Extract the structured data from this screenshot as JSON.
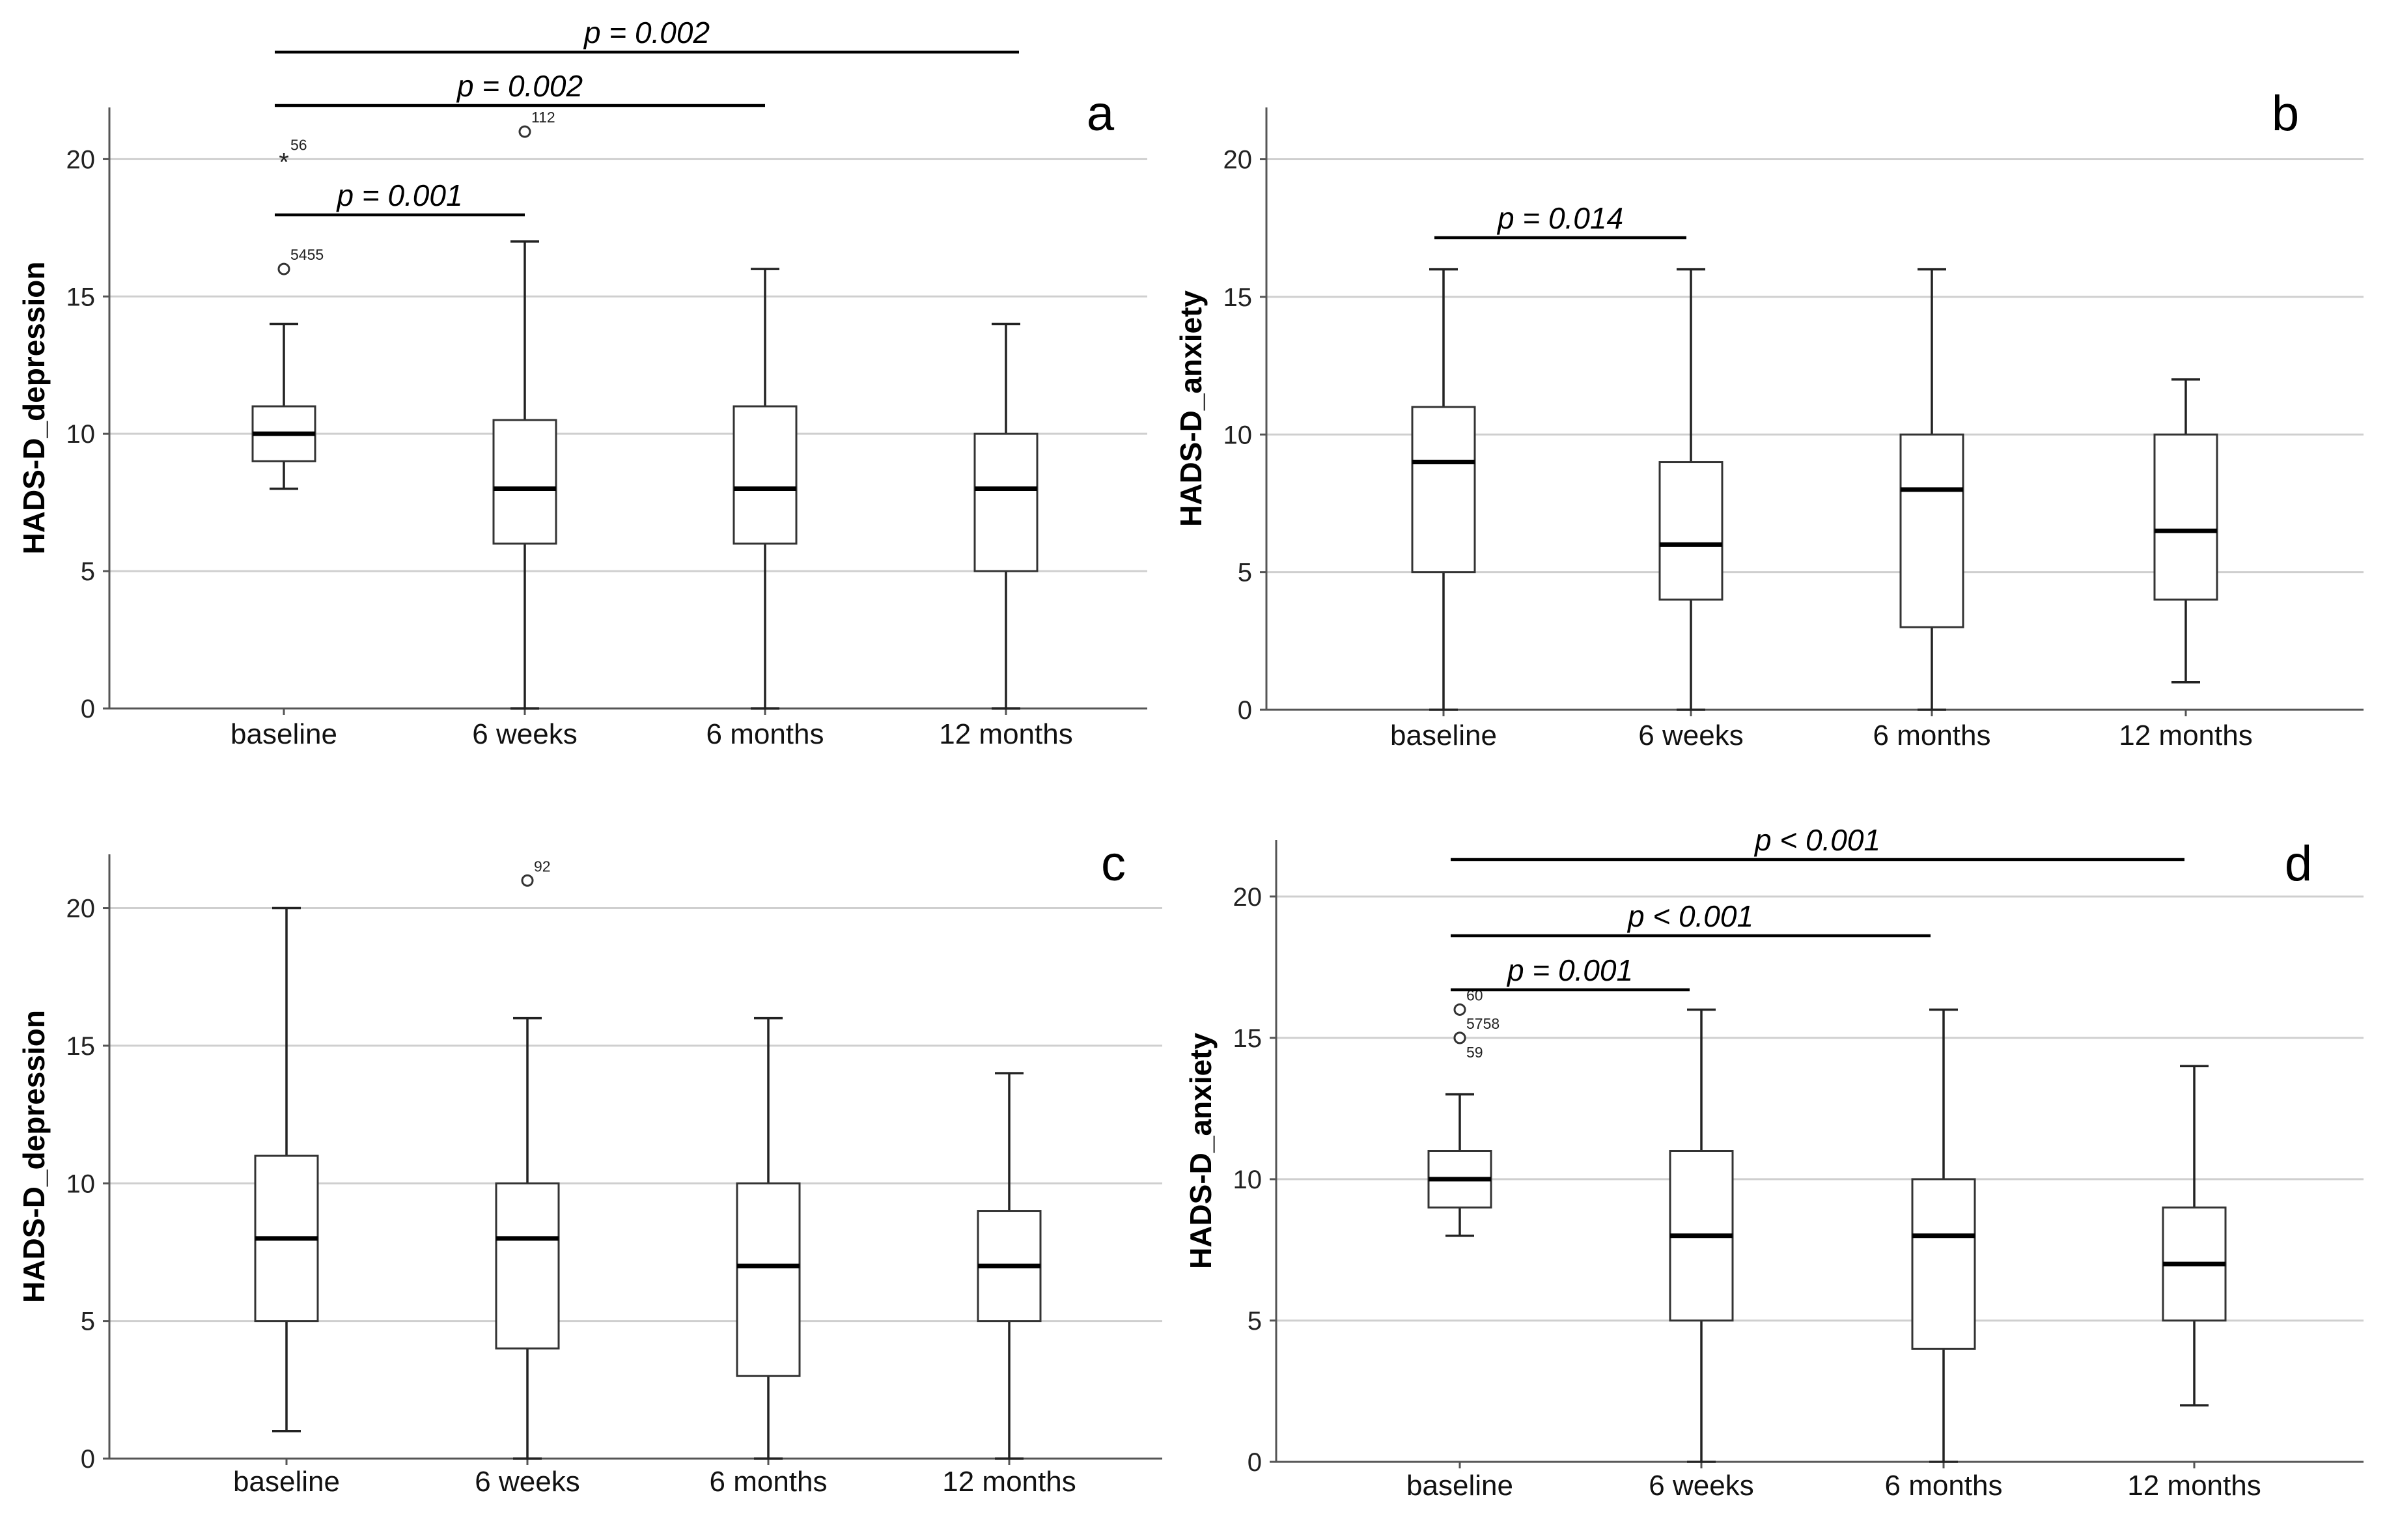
{
  "chart_data": [
    {
      "type": "boxplot",
      "panel": "a",
      "ylabel": "HADS-D_depression",
      "ylim": [
        0,
        22
      ],
      "yticks": [
        "0",
        "5",
        "10",
        "15",
        "20"
      ],
      "categories": [
        "baseline",
        "6 weeks",
        "6 months",
        "12 months"
      ],
      "boxes": [
        {
          "q1": 9,
          "median": 10,
          "q3": 11,
          "whisker_low": 8,
          "whisker_high": 14
        },
        {
          "q1": 6,
          "median": 8,
          "q3": 10.5,
          "whisker_low": 0,
          "whisker_high": 17
        },
        {
          "q1": 6,
          "median": 8,
          "q3": 11,
          "whisker_low": 0,
          "whisker_high": 16
        },
        {
          "q1": 5,
          "median": 8,
          "q3": 10,
          "whisker_low": 0,
          "whisker_high": 14
        }
      ],
      "outliers": [
        {
          "category": 0,
          "value": 16,
          "marker": "circle",
          "label": "5455"
        },
        {
          "category": 0,
          "value": 20,
          "marker": "star",
          "label": "56"
        },
        {
          "category": 1,
          "value": 21,
          "marker": "circle",
          "label": "112"
        }
      ],
      "significance": [
        {
          "from": 0,
          "to": 1,
          "label": "p = 0.001"
        },
        {
          "from": 0,
          "to": 2,
          "label": "p = 0.002"
        },
        {
          "from": 0,
          "to": 3,
          "label": "p = 0.002"
        }
      ]
    },
    {
      "type": "boxplot",
      "panel": "b",
      "ylabel": "HADS-D_anxiety",
      "ylim": [
        0,
        22
      ],
      "yticks": [
        "0",
        "5",
        "10",
        "15",
        "20"
      ],
      "categories": [
        "baseline",
        "6 weeks",
        "6 months",
        "12 months"
      ],
      "boxes": [
        {
          "q1": 5,
          "median": 9,
          "q3": 11,
          "whisker_low": 0,
          "whisker_high": 16
        },
        {
          "q1": 4,
          "median": 6,
          "q3": 9,
          "whisker_low": 0,
          "whisker_high": 16
        },
        {
          "q1": 3,
          "median": 8,
          "q3": 10,
          "whisker_low": 0,
          "whisker_high": 16
        },
        {
          "q1": 4,
          "median": 6.5,
          "q3": 10,
          "whisker_low": 1,
          "whisker_high": 12
        }
      ],
      "outliers": [],
      "significance": [
        {
          "from": 0,
          "to": 1,
          "label": "p = 0.014"
        }
      ]
    },
    {
      "type": "boxplot",
      "panel": "c",
      "ylabel": "HADS-D_depression",
      "ylim": [
        0,
        22
      ],
      "yticks": [
        "0",
        "5",
        "10",
        "15",
        "20"
      ],
      "categories": [
        "baseline",
        "6 weeks",
        "6 months",
        "12 months"
      ],
      "boxes": [
        {
          "q1": 5,
          "median": 8,
          "q3": 11,
          "whisker_low": 1,
          "whisker_high": 20
        },
        {
          "q1": 4,
          "median": 8,
          "q3": 10,
          "whisker_low": 0,
          "whisker_high": 16
        },
        {
          "q1": 3,
          "median": 7,
          "q3": 10,
          "whisker_low": 0,
          "whisker_high": 16
        },
        {
          "q1": 5,
          "median": 7,
          "q3": 9,
          "whisker_low": 0,
          "whisker_high": 14
        }
      ],
      "outliers": [
        {
          "category": 1,
          "value": 21,
          "marker": "circle",
          "label": "92"
        }
      ],
      "significance": []
    },
    {
      "type": "boxplot",
      "panel": "d",
      "ylabel": "HADS-D_anxiety",
      "ylim": [
        0,
        22
      ],
      "yticks": [
        "0",
        "5",
        "10",
        "15",
        "20"
      ],
      "categories": [
        "baseline",
        "6 weeks",
        "6 months",
        "12 months"
      ],
      "boxes": [
        {
          "q1": 9,
          "median": 10,
          "q3": 11,
          "whisker_low": 8,
          "whisker_high": 13
        },
        {
          "q1": 5,
          "median": 8,
          "q3": 11,
          "whisker_low": 0,
          "whisker_high": 16
        },
        {
          "q1": 4,
          "median": 8,
          "q3": 10,
          "whisker_low": 0,
          "whisker_high": 16
        },
        {
          "q1": 5,
          "median": 7,
          "q3": 9,
          "whisker_low": 2,
          "whisker_high": 14
        }
      ],
      "outliers": [
        {
          "category": 0,
          "value": 16,
          "marker": "circle",
          "label": "60"
        },
        {
          "category": 0,
          "value": 15,
          "marker": "circle",
          "label": "5758"
        },
        {
          "category": 0,
          "value": 15,
          "marker": "circle",
          "label": "59"
        }
      ],
      "significance": [
        {
          "from": 0,
          "to": 1,
          "label": "p = 0.001"
        },
        {
          "from": 0,
          "to": 2,
          "label": "p < 0.001"
        },
        {
          "from": 0,
          "to": 3,
          "label": "p < 0.001"
        }
      ]
    }
  ]
}
